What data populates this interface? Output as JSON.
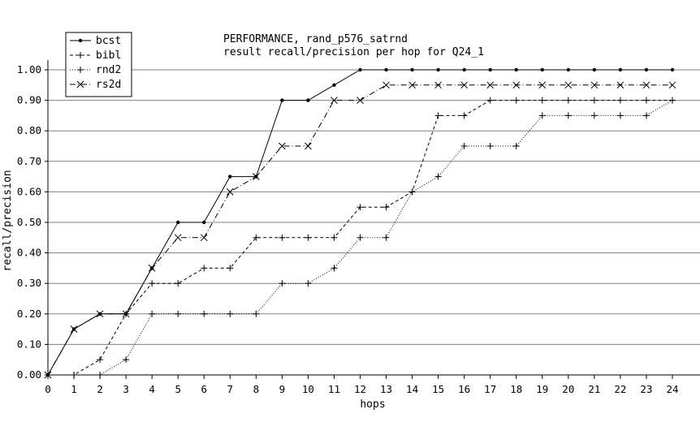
{
  "chart_data": {
    "type": "line",
    "title": "PERFORMANCE, rand_p576_satrnd",
    "subtitle": "result recall/precision per hop for Q24_1",
    "xlabel": "hops",
    "ylabel": "recall/precision",
    "x": [
      0,
      1,
      2,
      3,
      4,
      5,
      6,
      7,
      8,
      9,
      10,
      11,
      12,
      13,
      14,
      15,
      16,
      17,
      18,
      19,
      20,
      21,
      22,
      23,
      24
    ],
    "xlim": [
      0,
      24
    ],
    "ylim": [
      0,
      1.0
    ],
    "x_ticks": [
      "0",
      "1",
      "2",
      "3",
      "4",
      "5",
      "6",
      "7",
      "8",
      "9",
      "10",
      "11",
      "12",
      "13",
      "14",
      "15",
      "16",
      "17",
      "18",
      "19",
      "20",
      "21",
      "22",
      "23",
      "24"
    ],
    "y_ticks": [
      "0.00",
      "0.10",
      "0.20",
      "0.30",
      "0.40",
      "0.50",
      "0.60",
      "0.70",
      "0.80",
      "0.90",
      "1.00"
    ],
    "grid": "horizontal",
    "legend_position": "top-left",
    "series": [
      {
        "name": "bcst",
        "line_style": "solid",
        "marker": "dot",
        "values": [
          0.0,
          0.15,
          0.2,
          0.2,
          0.35,
          0.5,
          0.5,
          0.65,
          0.65,
          0.9,
          0.9,
          0.95,
          1.0,
          1.0,
          1.0,
          1.0,
          1.0,
          1.0,
          1.0,
          1.0,
          1.0,
          1.0,
          1.0,
          1.0,
          1.0
        ]
      },
      {
        "name": "bibl",
        "line_style": "dashed",
        "marker": "plus",
        "values": [
          0.0,
          0.0,
          0.05,
          0.2,
          0.3,
          0.3,
          0.35,
          0.35,
          0.45,
          0.45,
          0.45,
          0.45,
          0.55,
          0.55,
          0.6,
          0.85,
          0.85,
          0.9,
          0.9,
          0.9,
          0.9,
          0.9,
          0.9,
          0.9,
          0.9
        ]
      },
      {
        "name": "rnd2",
        "line_style": "dotted",
        "marker": "plus",
        "values": [
          0.0,
          0.0,
          0.0,
          0.05,
          0.2,
          0.2,
          0.2,
          0.2,
          0.2,
          0.3,
          0.3,
          0.35,
          0.45,
          0.45,
          0.6,
          0.65,
          0.75,
          0.75,
          0.75,
          0.85,
          0.85,
          0.85,
          0.85,
          0.85,
          0.9
        ]
      },
      {
        "name": "rs2d",
        "line_style": "dashdot",
        "marker": "x",
        "values": [
          0.0,
          0.15,
          0.2,
          0.2,
          0.35,
          0.45,
          0.45,
          0.6,
          0.65,
          0.75,
          0.75,
          0.9,
          0.9,
          0.95,
          0.95,
          0.95,
          0.95,
          0.95,
          0.95,
          0.95,
          0.95,
          0.95,
          0.95,
          0.95,
          0.95
        ]
      }
    ]
  }
}
